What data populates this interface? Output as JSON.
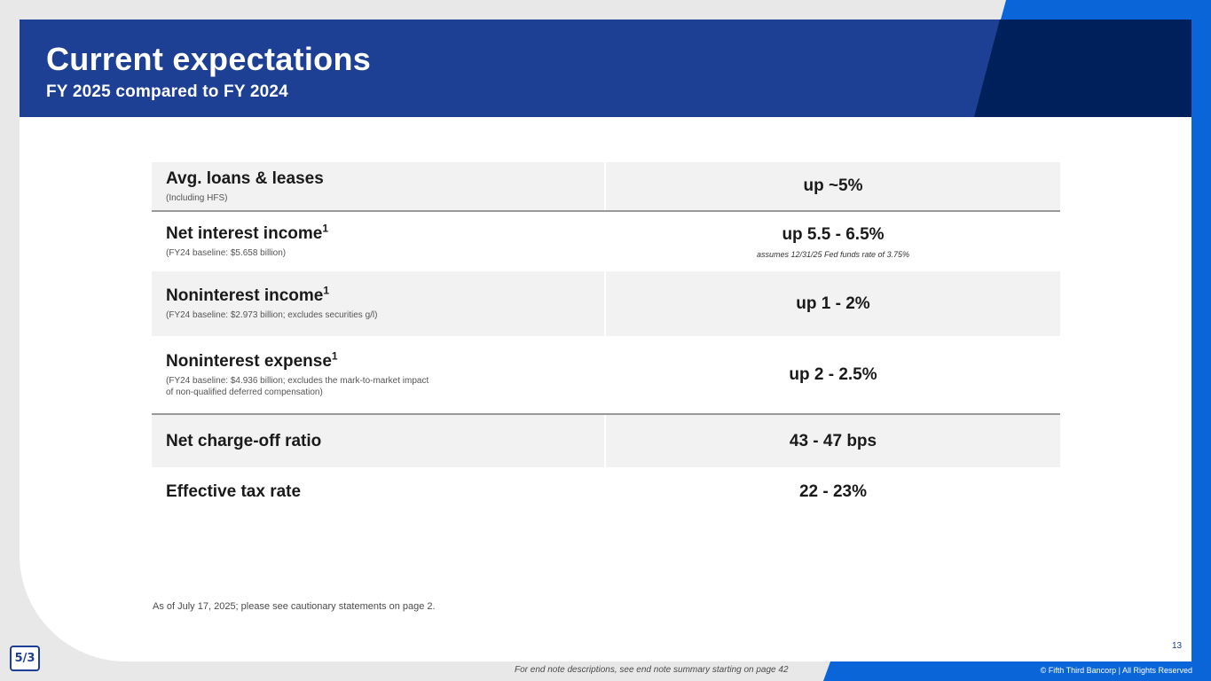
{
  "header": {
    "title": "Current expectations",
    "subtitle": "FY 2025 compared to FY 2024"
  },
  "rows": [
    {
      "label": "Avg. loans & leases",
      "sup": "",
      "note": "(Including HFS)",
      "value": "up ~5%",
      "value_note": ""
    },
    {
      "label": "Net interest income",
      "sup": "1",
      "note": "(FY24 baseline: $5.658 billion)",
      "value": "up 5.5 - 6.5%",
      "value_note": "assumes 12/31/25 Fed funds rate of 3.75%"
    },
    {
      "label": "Noninterest income",
      "sup": "1",
      "note": "(FY24 baseline: $2.973 billion; excludes securities g/l)",
      "value": "up 1 - 2%",
      "value_note": ""
    },
    {
      "label": "Noninterest expense",
      "sup": "1",
      "note_line1": "(FY24 baseline: $4.936 billion; excludes the mark-to-market impact",
      "note_line2": "of non-qualified deferred compensation)",
      "value": "up 2 - 2.5%",
      "value_note": ""
    },
    {
      "label": "Net charge-off ratio",
      "value": "43 - 47 bps"
    },
    {
      "label": "Effective tax rate",
      "value": "22 - 23%"
    }
  ],
  "footnote": "As of July 17, 2025; please see cautionary statements on page 2.",
  "page_number": "13",
  "logo_text": "5/3",
  "endnote": "For end note descriptions, see end note summary starting on page 42",
  "copyright": "© Fifth Third Bancorp | All Rights Reserved",
  "colors": {
    "header": "#1d3f94",
    "header_dark": "#00205b",
    "accent": "#0a66d8",
    "row_shade": "#f2f2f2"
  }
}
